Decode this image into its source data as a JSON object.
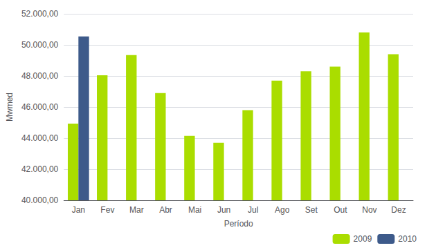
{
  "chart_data": {
    "type": "bar",
    "categories": [
      "Jan",
      "Fev",
      "Mar",
      "Abr",
      "Mai",
      "Jun",
      "Jul",
      "Ago",
      "Set",
      "Out",
      "Nov",
      "Dez"
    ],
    "series": [
      {
        "name": "2009",
        "color": "#aadd00",
        "values": [
          44931.36,
          48050.0,
          49350.0,
          46900.0,
          44150.0,
          43700.0,
          45800.0,
          47700.0,
          48300.0,
          48600.0,
          50800.0,
          49400.0
        ]
      },
      {
        "name": "2010",
        "color": "#3d5a8a",
        "values": [
          50550.0,
          null,
          null,
          null,
          null,
          null,
          null,
          null,
          null,
          null,
          null,
          null
        ]
      }
    ],
    "xlabel": "Período",
    "ylabel": "Mwmed",
    "ylim": [
      40000,
      52000
    ],
    "yticks": [
      {
        "value": 40000,
        "label": "40.000,00"
      },
      {
        "value": 42000,
        "label": "42.000,00"
      },
      {
        "value": 44000,
        "label": "44.000,00"
      },
      {
        "value": 46000,
        "label": "46.000,00"
      },
      {
        "value": 48000,
        "label": "48.000,00"
      },
      {
        "value": 50000,
        "label": "50.000,00"
      },
      {
        "value": 52000,
        "label": "52.000,00"
      }
    ],
    "grid": true,
    "legend": "lower right"
  }
}
